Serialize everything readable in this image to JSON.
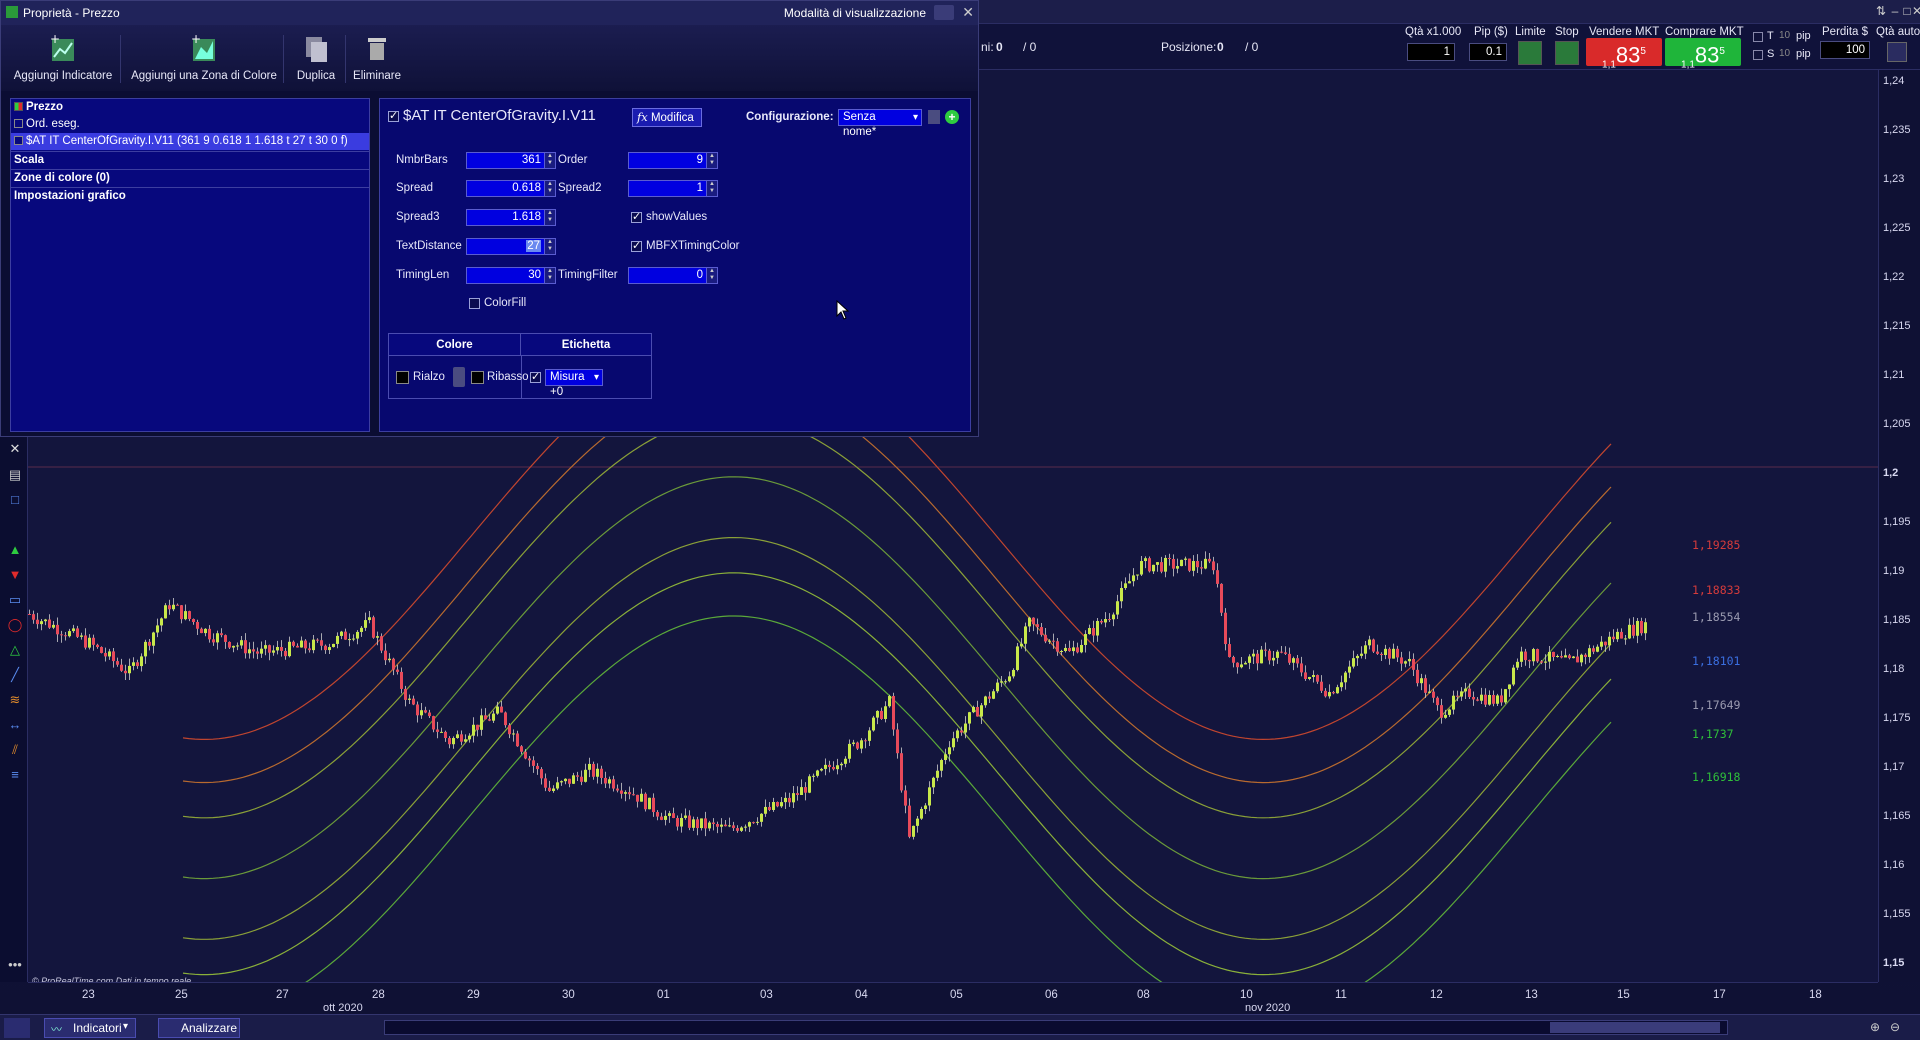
{
  "dialog": {
    "title": "Proprietà - Prezzo",
    "view_mode_label": "Modalità di visualizzazione",
    "toolbar": {
      "add_indicator": "Aggiungi Indicatore",
      "add_color_zone": "Aggiungi una Zona di Colore",
      "duplicate": "Duplica",
      "delete": "Eliminare"
    },
    "tree": {
      "price": "Prezzo",
      "orders": "Ord. eseg.",
      "indicator": "$AT IT CenterOfGravity.I.V11 (361 9 0.618 1 1.618 t 27 t 30 0 f)",
      "scale": "Scala",
      "color_zones": "Zone di colore (0)",
      "chart_settings": "Impostazioni grafico"
    },
    "panel": {
      "indicator_name": "$AT IT CenterOfGravity.I.V11",
      "modify_button": "Modifica",
      "config_label": "Configurazione:",
      "config_value": "Senza nome*",
      "params": {
        "nmbrbars_label": "NmbrBars",
        "nmbrbars_value": "361",
        "order_label": "Order",
        "order_value": "9",
        "spread_label": "Spread",
        "spread_value": "0.618",
        "spread2_label": "Spread2",
        "spread2_value": "1",
        "spread3_label": "Spread3",
        "spread3_value": "1.618",
        "showvalues_label": "showValues",
        "textdistance_label": "TextDistance",
        "textdistance_value": "27",
        "mbfx_label": "MBFXTimingColor",
        "timinglen_label": "TimingLen",
        "timinglen_value": "30",
        "timingfilter_label": "TimingFilter",
        "timingfilter_value": "0",
        "colorfill_label": "ColorFill"
      },
      "table": {
        "color_header": "Colore",
        "label_header": "Etichetta",
        "rise_label": "Rialzo",
        "fall_label": "Ribasso",
        "measure_value": "Misura +0"
      }
    }
  },
  "trading": {
    "partial_label": "ni:",
    "partial_value": "0",
    "partial_sep": "/ 0",
    "position_label": "Posizione:",
    "position_value": "0",
    "position_sep": "/ 0",
    "qty_header": "Qtà x1.000",
    "qty_value": "1",
    "pip_header": "Pip ($)",
    "pip_value": "0.1",
    "limit_header": "Limite",
    "stop_header": "Stop",
    "sell_header": "Vendere MKT",
    "buy_header": "Comprare MKT",
    "sell_price_pre": "1,1",
    "sell_price_main": "83",
    "sell_price_sup": "5",
    "buy_price_pre": "1,1",
    "buy_price_main": "83",
    "buy_price_sup": "5",
    "t_label": "T",
    "s_label": "S",
    "t_value": "10",
    "s_value": "10",
    "pip_unit": "pip",
    "loss_header": "Perdita $",
    "loss_value": "100",
    "auto_qty_header": "Qtà auto"
  },
  "chart": {
    "watermark": "© ProRealTime.com",
    "watermark_realtime": "Dati in tempo reale",
    "band_labels": [
      {
        "text": "1,19285",
        "color": "#d43b3b"
      },
      {
        "text": "1,18833",
        "color": "#d43b3b"
      },
      {
        "text": "1,18554",
        "color": "#9a9ab0"
      },
      {
        "text": "1,18101",
        "color": "#3a6ee0"
      },
      {
        "text": "1,17649",
        "color": "#9a9ab0"
      },
      {
        "text": "1,1737",
        "color": "#2fbf3a"
      },
      {
        "text": "1,16918",
        "color": "#2fbf3a"
      }
    ],
    "price_ticks": [
      "1,24",
      "1,235",
      "1,23",
      "1,225",
      "1,22",
      "1,215",
      "1,21",
      "1,205",
      "1,2",
      "1,195",
      "1,19",
      "1,185",
      "1,18",
      "1,175",
      "1,17",
      "1,165",
      "1,16",
      "1,155",
      "1,15"
    ],
    "time_ticks": [
      "23",
      "25",
      "27",
      "28",
      "29",
      "30",
      "01",
      "03",
      "04",
      "05",
      "06",
      "08",
      "10",
      "11",
      "12",
      "13",
      "15",
      "17",
      "18"
    ],
    "month_labels": [
      "ott 2020",
      "nov 2020"
    ]
  },
  "bottom": {
    "indicators_label": "Indicatori",
    "analyze_label": "Analizzare"
  }
}
